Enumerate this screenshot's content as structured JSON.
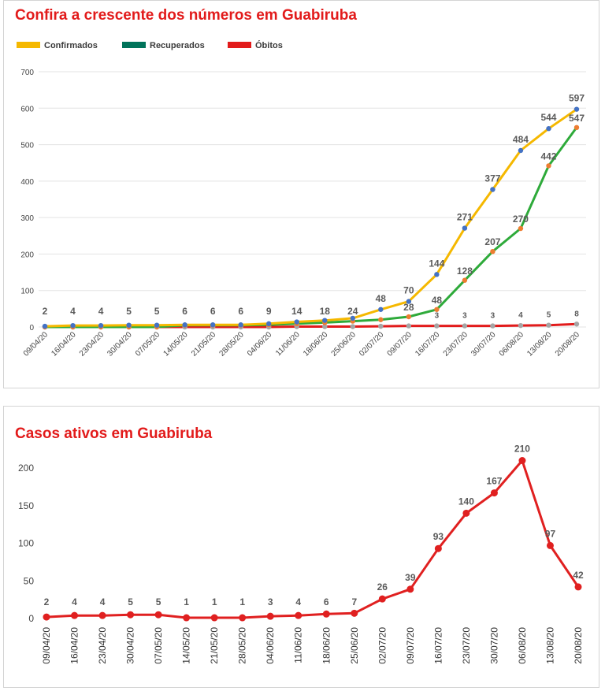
{
  "chart_data": [
    {
      "type": "line",
      "title": "Confira a crescente dos números em Guabiruba",
      "legend_position": "top-left",
      "grid": true,
      "ylim": [
        0,
        700
      ],
      "yticks": [
        "0",
        "100",
        "200",
        "300",
        "400",
        "500",
        "600",
        "700"
      ],
      "x": [
        "09/04/20",
        "16/04/20",
        "23/04/20",
        "30/04/20",
        "07/05/20",
        "14/05/20",
        "21/05/20",
        "28/05/20",
        "04/06/20",
        "11/06/20",
        "18/06/20",
        "25/06/20",
        "02/07/20",
        "09/07/20",
        "16/07/20",
        "23/07/20",
        "30/07/20",
        "06/08/20",
        "13/08/20",
        "20/08/20"
      ],
      "series": [
        {
          "name": "Confirmados",
          "color": "#f5b800",
          "marker_color": "#4472c4",
          "values": [
            2,
            4,
            4,
            5,
            5,
            6,
            6,
            6,
            9,
            14,
            18,
            24,
            48,
            70,
            144,
            271,
            377,
            484,
            544,
            597
          ],
          "labels": [
            "2",
            "4",
            "4",
            "5",
            "5",
            "6",
            "6",
            "6",
            "9",
            "14",
            "18",
            "24",
            "48",
            "70",
            "144",
            "271",
            "377",
            "484",
            "544",
            "597"
          ]
        },
        {
          "name": "Recuperados",
          "color": "#2eaa3a",
          "legend_color": "#00735a",
          "marker_color": "#ed7d31",
          "values": [
            0,
            0,
            0,
            0,
            0,
            5,
            5,
            5,
            6,
            9,
            12,
            16,
            20,
            28,
            48,
            128,
            207,
            270,
            442,
            547
          ],
          "labels": [
            "",
            "",
            "",
            "",
            "",
            "",
            "",
            "",
            "",
            "",
            "",
            "",
            "",
            "28",
            "48",
            "128",
            "207",
            "270",
            "442",
            "547"
          ]
        },
        {
          "name": "Óbitos",
          "color": "#e21b1b",
          "marker_color": "#a5a5a5",
          "values": [
            0,
            0,
            0,
            0,
            0,
            0,
            0,
            0,
            0,
            1,
            1,
            1,
            2,
            3,
            3,
            3,
            3,
            4,
            5,
            8
          ],
          "labels": [
            "",
            "",
            "",
            "",
            "",
            "",
            "",
            "",
            "",
            "",
            "",
            "",
            "",
            "",
            "3",
            "3",
            "3",
            "4",
            "5",
            "8"
          ]
        }
      ]
    },
    {
      "type": "line",
      "title": "Casos ativos em Guabiruba",
      "grid": false,
      "ylim": [
        0,
        220
      ],
      "yticks": [
        "0",
        "50",
        "100",
        "150",
        "200"
      ],
      "x": [
        "09/04/20",
        "16/04/20",
        "23/04/20",
        "30/04/20",
        "07/05/20",
        "14/05/20",
        "21/05/20",
        "28/05/20",
        "04/06/20",
        "11/06/20",
        "18/06/20",
        "25/06/20",
        "02/07/20",
        "09/07/20",
        "16/07/20",
        "23/07/20",
        "30/07/20",
        "06/08/20",
        "13/08/20",
        "20/08/20"
      ],
      "series": [
        {
          "color": "#e02020",
          "values": [
            2,
            4,
            4,
            5,
            5,
            1,
            1,
            1,
            3,
            4,
            6,
            7,
            26,
            39,
            93,
            140,
            167,
            210,
            97,
            42
          ],
          "labels": [
            "2",
            "4",
            "4",
            "5",
            "5",
            "1",
            "1",
            "1",
            "3",
            "4",
            "6",
            "7",
            "26",
            "39",
            "93",
            "140",
            "167",
            "210",
            "97",
            "42"
          ]
        }
      ]
    }
  ]
}
